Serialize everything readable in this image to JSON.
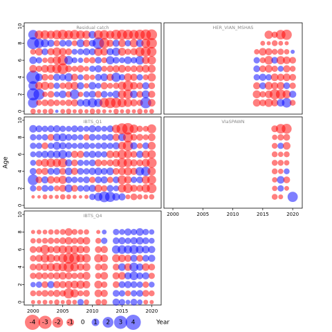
{
  "chart_data": [
    {
      "type": "bubble",
      "title": "Residual catch",
      "x": [
        2000,
        2001,
        2002,
        2003,
        2004,
        2005,
        2006,
        2007,
        2008,
        2009,
        2010,
        2011,
        2012,
        2013,
        2014,
        2015,
        2016,
        2017,
        2018,
        2019,
        2020
      ],
      "ages": [
        0,
        1,
        2,
        3,
        4,
        5,
        6,
        7,
        8,
        9
      ],
      "xlim": [
        1998.5,
        2021.6
      ],
      "ylim": [
        -0.33,
        10.4
      ],
      "yticks": [
        0,
        2,
        4,
        6,
        8,
        10
      ],
      "residuals": [
        [
          -0.5,
          -0.3,
          -0.4,
          -0.5,
          0.2,
          -0.4,
          -0.5,
          -0.3,
          -0.4,
          -0.3,
          -0.5,
          -0.4,
          -0.3,
          -0.2,
          -0.5,
          -0.3,
          -0.4,
          -0.3,
          -0.5,
          -0.3,
          -0.4
        ],
        [
          1.8,
          -0.6,
          -0.8,
          -0.9,
          -0.7,
          -0.6,
          -0.8,
          -0.9,
          0.9,
          1.1,
          1.5,
          1.2,
          -1.6,
          -2.0,
          -1.8,
          -1.4,
          -1.2,
          -0.9,
          -0.7,
          2.1,
          -1.0
        ],
        [
          2.6,
          2.1,
          -0.5,
          -0.8,
          0.6,
          1.0,
          -0.7,
          1.6,
          -0.5,
          0.7,
          0.9,
          -0.8,
          0.8,
          0.5,
          1.0,
          -1.2,
          -1.5,
          1.0,
          -0.8,
          1.1,
          -0.9
        ],
        [
          1.5,
          -1.0,
          -1.2,
          -0.8,
          0.7,
          -0.7,
          -1.0,
          -1.1,
          0.9,
          -0.5,
          1.0,
          0.6,
          -0.9,
          -0.6,
          -0.7,
          -1.2,
          -1.8,
          -1.0,
          -0.8,
          0.9,
          -0.8
        ],
        [
          3.1,
          1.0,
          -0.8,
          -0.6,
          0.9,
          0.8,
          1.2,
          -0.9,
          0.6,
          -0.7,
          -0.5,
          0.8,
          1.0,
          -0.9,
          1.5,
          0.7,
          -1.1,
          -0.9,
          0.7,
          -0.6,
          -1.2
        ],
        [
          -1.0,
          -0.7,
          -1.0,
          -1.2,
          -1.5,
          -2.0,
          -0.8,
          -0.6,
          -0.9,
          -0.5,
          0.7,
          0.9,
          -0.6,
          -0.8,
          -0.9,
          -1.0,
          -0.7,
          -0.8,
          -0.9,
          -1.0,
          -1.1
        ],
        [
          1.0,
          0.7,
          -0.5,
          -0.8,
          -1.2,
          -1.8,
          1.3,
          0.6,
          0.5,
          -0.6,
          -0.7,
          0.8,
          -0.6,
          1.2,
          0.8,
          0.6,
          1.0,
          0.7,
          1.3,
          -1.0,
          -1.3
        ],
        [
          -0.6,
          -1.0,
          0.8,
          -0.9,
          -1.3,
          -1.0,
          -0.8,
          0.6,
          0.7,
          0.9,
          0.8,
          -1.2,
          -1.0,
          0.9,
          1.2,
          -1.1,
          -0.7,
          -0.9,
          -1.5,
          -1.7,
          -1.6
        ],
        [
          2.5,
          1.6,
          1.2,
          0.9,
          -0.7,
          0.8,
          0.8,
          -0.6,
          1.1,
          -0.9,
          0.8,
          2.3,
          -1.8,
          -0.9,
          0.9,
          -1.0,
          0.7,
          -1.2,
          1.0,
          -1.4,
          -1.9
        ],
        [
          1.6,
          -1.3,
          -1.4,
          -1.2,
          -1.5,
          -1.7,
          -1.4,
          -1.6,
          -1.3,
          -1.2,
          1.0,
          -1.4,
          -1.5,
          -1.2,
          -1.7,
          -1.8,
          -1.7,
          -1.6,
          -1.8,
          -1.9,
          -2.0
        ]
      ]
    },
    {
      "type": "bubble",
      "title": "HER_VIAN_MSHAS",
      "x": [
        2014,
        2015,
        2016,
        2017,
        2018,
        2019,
        2020
      ],
      "ages": [
        1,
        2,
        3,
        4,
        5,
        6,
        7,
        8,
        9
      ],
      "xlim": [
        1998.5,
        2021.6
      ],
      "ylim": [
        -0.33,
        10.4
      ],
      "residuals": [
        [
          -1.0,
          -0.8,
          -1.2,
          -0.9,
          1.0,
          1.6,
          -0.6
        ],
        [
          -1.1,
          -0.7,
          -1.0,
          -1.8,
          -1.6,
          -1.2,
          0.9
        ],
        [
          -0.9,
          0.8,
          -1.1,
          -0.9,
          -1.0,
          0.8,
          -0.7
        ],
        [
          0.7,
          0.9,
          0.7,
          -1.0,
          -0.9,
          -1.0,
          -0.8
        ],
        [
          0.8,
          -0.8,
          -1.0,
          -0.7,
          0.6,
          -0.9,
          -0.6
        ],
        [
          0.7,
          -0.6,
          -1.3,
          0.8,
          -1.2,
          -1.0,
          -0.8
        ],
        [
          -0.5,
          -1.0,
          -0.9,
          -0.6,
          -0.7,
          -0.5,
          0.3
        ],
        [
          null,
          -0.4,
          -0.3,
          -0.6,
          -0.4,
          -0.3,
          null
        ],
        [
          null,
          null,
          -1.2,
          -0.7,
          -1.6,
          -1.8,
          null
        ]
      ]
    },
    {
      "type": "bubble",
      "title": "IBTS_Q1",
      "x": [
        2000,
        2001,
        2002,
        2003,
        2004,
        2005,
        2006,
        2007,
        2008,
        2009,
        2010,
        2011,
        2012,
        2013,
        2014,
        2015,
        2016,
        2017,
        2018,
        2019,
        2020
      ],
      "ages": [
        1,
        2,
        3,
        4,
        5,
        6,
        7,
        8,
        9
      ],
      "xlim": [
        1998.5,
        2021.6
      ],
      "ylim": [
        -0.33,
        10.4
      ],
      "yticks": [
        0,
        2,
        4,
        6,
        8,
        10
      ],
      "residuals": [
        [
          -0.2,
          -0.2,
          -0.4,
          -0.3,
          -0.3,
          -0.5,
          -0.4,
          -0.3,
          -0.2,
          -0.3,
          0.7,
          1.2,
          2.0,
          1.8,
          1.0,
          0.9,
          -0.4,
          -0.8,
          -0.5,
          -0.4,
          -0.5
        ],
        [
          0.7,
          -0.5,
          0.8,
          0.6,
          -0.6,
          -0.9,
          1.1,
          -0.8,
          0.7,
          0.8,
          0.9,
          -1.0,
          -0.7,
          0.8,
          0.6,
          -1.2,
          -1.5,
          -0.9,
          -0.8,
          -1.2,
          -1.6
        ],
        [
          2.0,
          -0.8,
          0.9,
          -1.0,
          -0.8,
          -1.2,
          0.8,
          0.7,
          0.6,
          0.8,
          -0.7,
          0.8,
          0.9,
          -0.7,
          0.8,
          -1.4,
          -1.0,
          0.7,
          0.8,
          -1.1,
          -1.4
        ],
        [
          0.8,
          -0.7,
          -0.9,
          0.8,
          0.9,
          -0.8,
          1.0,
          -0.9,
          0.8,
          0.7,
          0.9,
          1.0,
          0.8,
          1.0,
          -0.8,
          -1.0,
          -1.2,
          -0.9,
          1.3,
          1.5,
          -1.2
        ],
        [
          0.6,
          -0.8,
          -1.1,
          -1.3,
          -1.2,
          -1.5,
          0.9,
          -0.8,
          0.7,
          0.6,
          0.8,
          -0.9,
          -0.7,
          -0.8,
          -1.0,
          -1.6,
          -1.3,
          -0.9,
          -0.8,
          -1.1,
          -1.7
        ],
        [
          0.6,
          0.8,
          0.9,
          1.0,
          1.0,
          1.3,
          0.8,
          -0.9,
          -0.9,
          0.7,
          0.9,
          0.8,
          0.7,
          -1.0,
          -0.9,
          -1.4,
          -1.1,
          -0.8,
          0.9,
          -1.0,
          -1.2
        ],
        [
          0.7,
          0.7,
          -0.8,
          0.7,
          1.1,
          0.9,
          0.8,
          0.6,
          0.7,
          0.8,
          0.6,
          0.7,
          0.8,
          0.7,
          0.9,
          -1.1,
          -1.8,
          0.9,
          -0.6,
          0.8,
          -1.1
        ],
        [
          0.7,
          0.6,
          0.7,
          -0.8,
          1.0,
          1.1,
          0.8,
          0.7,
          0.6,
          -0.7,
          0.8,
          0.6,
          0.7,
          0.8,
          -0.9,
          1.0,
          -1.7,
          -0.8,
          -0.8,
          -0.6,
          -1.0
        ],
        [
          1.0,
          0.8,
          0.7,
          0.8,
          0.9,
          0.7,
          0.6,
          0.8,
          0.7,
          0.6,
          0.9,
          0.7,
          0.6,
          0.8,
          -1.2,
          -2.1,
          -2.3,
          -1.3,
          -0.7,
          -0.6,
          -1.4
        ]
      ]
    },
    {
      "type": "bubble",
      "title": "VIaSPAWN",
      "x": [
        2016,
        2017,
        2018,
        2019,
        2020
      ],
      "ages": [
        1,
        2,
        3,
        4,
        5,
        6,
        7,
        8,
        9
      ],
      "xlim": [
        1998.5,
        2021.6
      ],
      "ylim": [
        -0.33,
        10.4
      ],
      "xticks": [
        2000,
        2005,
        2010,
        2015,
        2020
      ],
      "residuals": [
        [
          null,
          -0.6,
          -0.4,
          null,
          1.8
        ],
        [
          null,
          -0.5,
          0.7,
          -0.4,
          null
        ],
        [
          null,
          -0.5,
          1.0,
          -0.8,
          null
        ],
        [
          null,
          -0.6,
          -0.5,
          0.6,
          null
        ],
        [
          null,
          -0.6,
          -0.6,
          -0.5,
          null
        ],
        [
          null,
          -0.6,
          -0.5,
          -0.6,
          null
        ],
        [
          null,
          -0.6,
          0.7,
          -1.0,
          null
        ],
        [
          null,
          -0.5,
          -0.7,
          -0.8,
          null
        ],
        [
          null,
          -0.8,
          -1.6,
          -1.7,
          null
        ]
      ]
    },
    {
      "type": "bubble",
      "title": "IBTS_Q4",
      "x": [
        2000,
        2001,
        2002,
        2003,
        2004,
        2005,
        2006,
        2007,
        2008,
        2009,
        2010,
        2011,
        2012,
        2013,
        2014,
        2015,
        2016,
        2017,
        2018,
        2019,
        2020
      ],
      "ages": [
        0,
        1,
        2,
        3,
        4,
        5,
        6,
        7,
        8
      ],
      "xlim": [
        1998.5,
        2021.6
      ],
      "ylim": [
        -0.33,
        10.4
      ],
      "yticks": [
        0,
        2,
        4,
        6,
        8,
        10
      ],
      "xticks": [
        2000,
        2005,
        2010,
        2015,
        2020
      ],
      "residuals": [
        [
          -0.3,
          -0.3,
          -0.4,
          -0.3,
          -0.5,
          -0.3,
          -0.5,
          -0.4,
          0.7,
          -0.5,
          null,
          -0.6,
          -0.6,
          null,
          0.9,
          0.7,
          0.4,
          0.8,
          0.5,
          -0.4,
          -0.3
        ],
        [
          -0.6,
          -0.6,
          -0.8,
          -0.7,
          -0.9,
          -0.7,
          -1.8,
          -1.2,
          -0.6,
          -0.8,
          null,
          -1.0,
          -0.9,
          null,
          0.8,
          0.7,
          -0.6,
          0.7,
          0.8,
          -0.8,
          -0.6
        ],
        [
          0.5,
          0.7,
          -0.8,
          0.9,
          -0.9,
          -0.9,
          -1.0,
          -1.1,
          -1.2,
          -1.0,
          null,
          -1.1,
          -0.7,
          null,
          -0.8,
          0.8,
          0.9,
          0.8,
          0.7,
          -0.7,
          0.6
        ],
        [
          -0.7,
          -0.9,
          -0.8,
          -0.8,
          -0.9,
          -1.0,
          -0.9,
          -0.7,
          -0.8,
          -1.1,
          null,
          -0.7,
          -1.0,
          null,
          -0.9,
          -1.0,
          0.9,
          1.3,
          0.8,
          0.9,
          -0.7
        ],
        [
          -0.8,
          -0.9,
          -1.0,
          -1.1,
          -1.3,
          -1.2,
          -1.8,
          -1.3,
          -0.9,
          -1.1,
          null,
          -0.8,
          -0.9,
          null,
          -0.8,
          1.0,
          -1.0,
          1.4,
          0.9,
          -1.0,
          -0.8
        ],
        [
          -0.7,
          -0.9,
          -1.3,
          -1.2,
          -0.8,
          -1.4,
          -2.0,
          -2.0,
          -1.2,
          -1.3,
          null,
          -1.2,
          -1.0,
          null,
          -1.1,
          -1.0,
          -0.9,
          0.9,
          -0.8,
          0.8,
          0.9
        ],
        [
          -0.8,
          -0.7,
          -1.5,
          -0.8,
          -1.0,
          -1.2,
          -1.1,
          -1.2,
          -1.0,
          -0.9,
          null,
          -0.8,
          -0.9,
          null,
          1.2,
          1.3,
          1.2,
          1.4,
          1.1,
          1.0,
          0.9
        ],
        [
          -0.5,
          -0.5,
          -0.6,
          -0.7,
          -0.6,
          -0.8,
          -1.0,
          -0.7,
          -0.9,
          -1.0,
          null,
          -0.6,
          0.7,
          null,
          0.8,
          0.9,
          0.7,
          0.9,
          1.0,
          0.8,
          0.6
        ],
        [
          -0.3,
          -0.4,
          -0.4,
          -0.5,
          -0.5,
          -0.6,
          -1.0,
          -0.6,
          -0.5,
          -0.5,
          null,
          -0.3,
          0.4,
          null,
          0.7,
          0.6,
          0.9,
          0.7,
          1.0,
          0.7,
          0.5
        ]
      ]
    }
  ],
  "ylabel": "Age",
  "xlabel": "Year",
  "legend": {
    "values": [
      -4,
      -3,
      -2,
      -1,
      0,
      1,
      2,
      3,
      4
    ]
  },
  "colors": {
    "negative": "#ff0000",
    "positive": "#0000ff"
  }
}
